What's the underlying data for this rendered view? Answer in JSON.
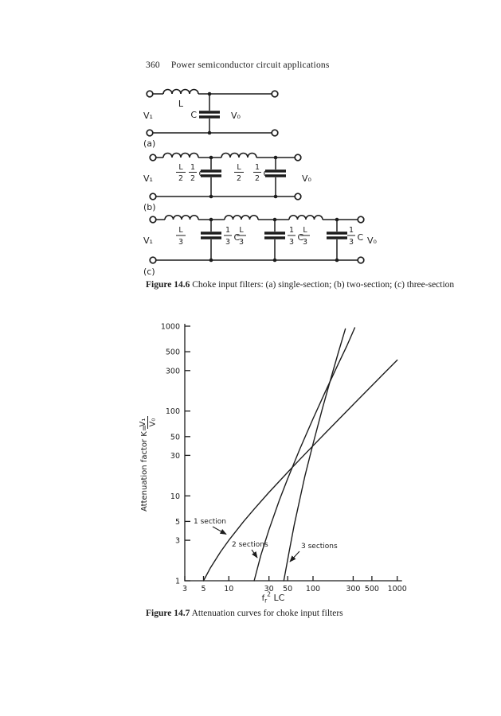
{
  "page": {
    "number": "360",
    "running_title": "Power semiconductor circuit applications",
    "ink_color": "#1c1c1c",
    "paper_color": "#ffffff"
  },
  "figure_14_6": {
    "caption_label": "Figure 14.6",
    "caption_text": " Choke input filters: (a) single-section; (b) two-section; (c) three-section",
    "circuit_a": {
      "tag": "(a)",
      "input_label": "V₁",
      "output_label": "V₀",
      "inductor": "L",
      "capacitor": "C"
    },
    "circuit_b": {
      "tag": "(b)",
      "input_label": "V₁",
      "output_label": "V₀",
      "inductor_num": "L",
      "inductor_den": "2",
      "cap_num": "1",
      "cap_den": "2",
      "cap_letter": "C"
    },
    "circuit_c": {
      "tag": "(c)",
      "input_label": "V₁",
      "output_label": "V₀",
      "inductor_num": "L",
      "inductor_den": "3",
      "cap_num": "1",
      "cap_den": "3",
      "cap_letter": "C"
    }
  },
  "figure_14_7": {
    "caption_label": "Figure 14.7",
    "caption_text": " Attenuation curves for choke input filters"
  },
  "chart_data": {
    "type": "line",
    "title": "",
    "xlabel": "fᵣ²LC",
    "xlabel_parts": {
      "base": "f",
      "sub": "r",
      "sup": "2",
      "rest": " LC"
    },
    "ylabel": "Attenuation factor K = V₁/V₀",
    "ylabel_parts": {
      "prefix": "Attenuation factor K=",
      "frac_num": "V₁",
      "frac_den": "V₀"
    },
    "x_scale": "log",
    "y_scale": "log",
    "xlim": [
      3,
      1000
    ],
    "ylim": [
      1,
      1000
    ],
    "x_ticks": [
      3,
      5,
      10,
      30,
      50,
      100,
      300,
      500,
      1000
    ],
    "y_ticks": [
      1,
      3,
      5,
      10,
      30,
      50,
      100,
      300,
      500,
      1000
    ],
    "grid": false,
    "legend_position": "inline-annotations",
    "series": [
      {
        "name": "1 section",
        "points": [
          [
            5,
            1
          ],
          [
            6,
            1.4
          ],
          [
            8,
            2.2
          ],
          [
            10,
            3
          ],
          [
            15,
            5
          ],
          [
            20,
            7
          ],
          [
            30,
            11
          ],
          [
            50,
            19
          ],
          [
            70,
            27
          ],
          [
            100,
            39
          ],
          [
            150,
            59
          ],
          [
            200,
            79
          ],
          [
            300,
            119
          ],
          [
            500,
            199
          ],
          [
            700,
            279
          ],
          [
            1000,
            399
          ]
        ]
      },
      {
        "name": "2 sections",
        "points": [
          [
            20,
            1
          ],
          [
            24,
            2
          ],
          [
            30,
            4
          ],
          [
            40,
            9
          ],
          [
            50,
            16
          ],
          [
            70,
            36
          ],
          [
            100,
            81
          ],
          [
            140,
            169
          ],
          [
            200,
            361
          ],
          [
            250,
            576
          ],
          [
            313,
            958
          ]
        ]
      },
      {
        "name": "3 sections",
        "points": [
          [
            45,
            1
          ],
          [
            52,
            2.2
          ],
          [
            60,
            4.6
          ],
          [
            80,
            17
          ],
          [
            100,
            41
          ],
          [
            130,
            109
          ],
          [
            160,
            228
          ],
          [
            200,
            491
          ],
          [
            242,
            930
          ]
        ]
      }
    ]
  }
}
